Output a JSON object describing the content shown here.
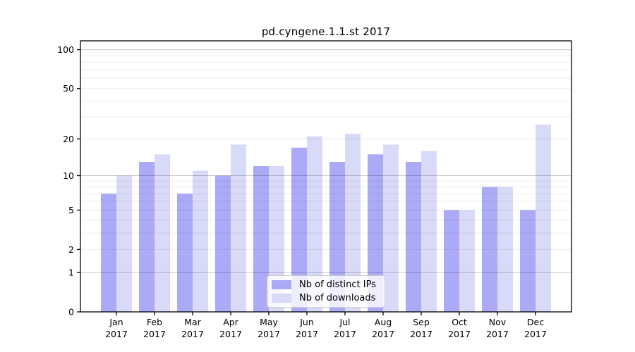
{
  "chart_data": {
    "type": "bar",
    "title": "pd.cyngene.1.1.st 2017",
    "xlabel": "",
    "ylabel": "",
    "categories": [
      "Jan",
      "Feb",
      "Mar",
      "Apr",
      "May",
      "Jun",
      "Jul",
      "Aug",
      "Sep",
      "Oct",
      "Nov",
      "Dec"
    ],
    "category_year": "2017",
    "series": [
      {
        "name": "Nb of distinct IPs",
        "color": "#aaaaf6",
        "values": [
          7,
          13,
          7,
          10,
          12,
          17,
          13,
          15,
          13,
          5,
          8,
          5
        ]
      },
      {
        "name": "Nb of downloads",
        "color": "#d9d9f8",
        "values": [
          10,
          15,
          11,
          18,
          12,
          21,
          22,
          18,
          16,
          5,
          8,
          26
        ]
      }
    ],
    "yticks": [
      0,
      1,
      2,
      5,
      10,
      20,
      50,
      100
    ],
    "yscale": "log1p",
    "ylim": [
      0,
      117
    ],
    "grid": true,
    "legend_position": "lower center inside plot",
    "frame_color": "#000000",
    "major_grid_color": "rgba(0,0,0,0.22)",
    "minor_grid_color": "rgba(0,0,0,0.07)"
  }
}
